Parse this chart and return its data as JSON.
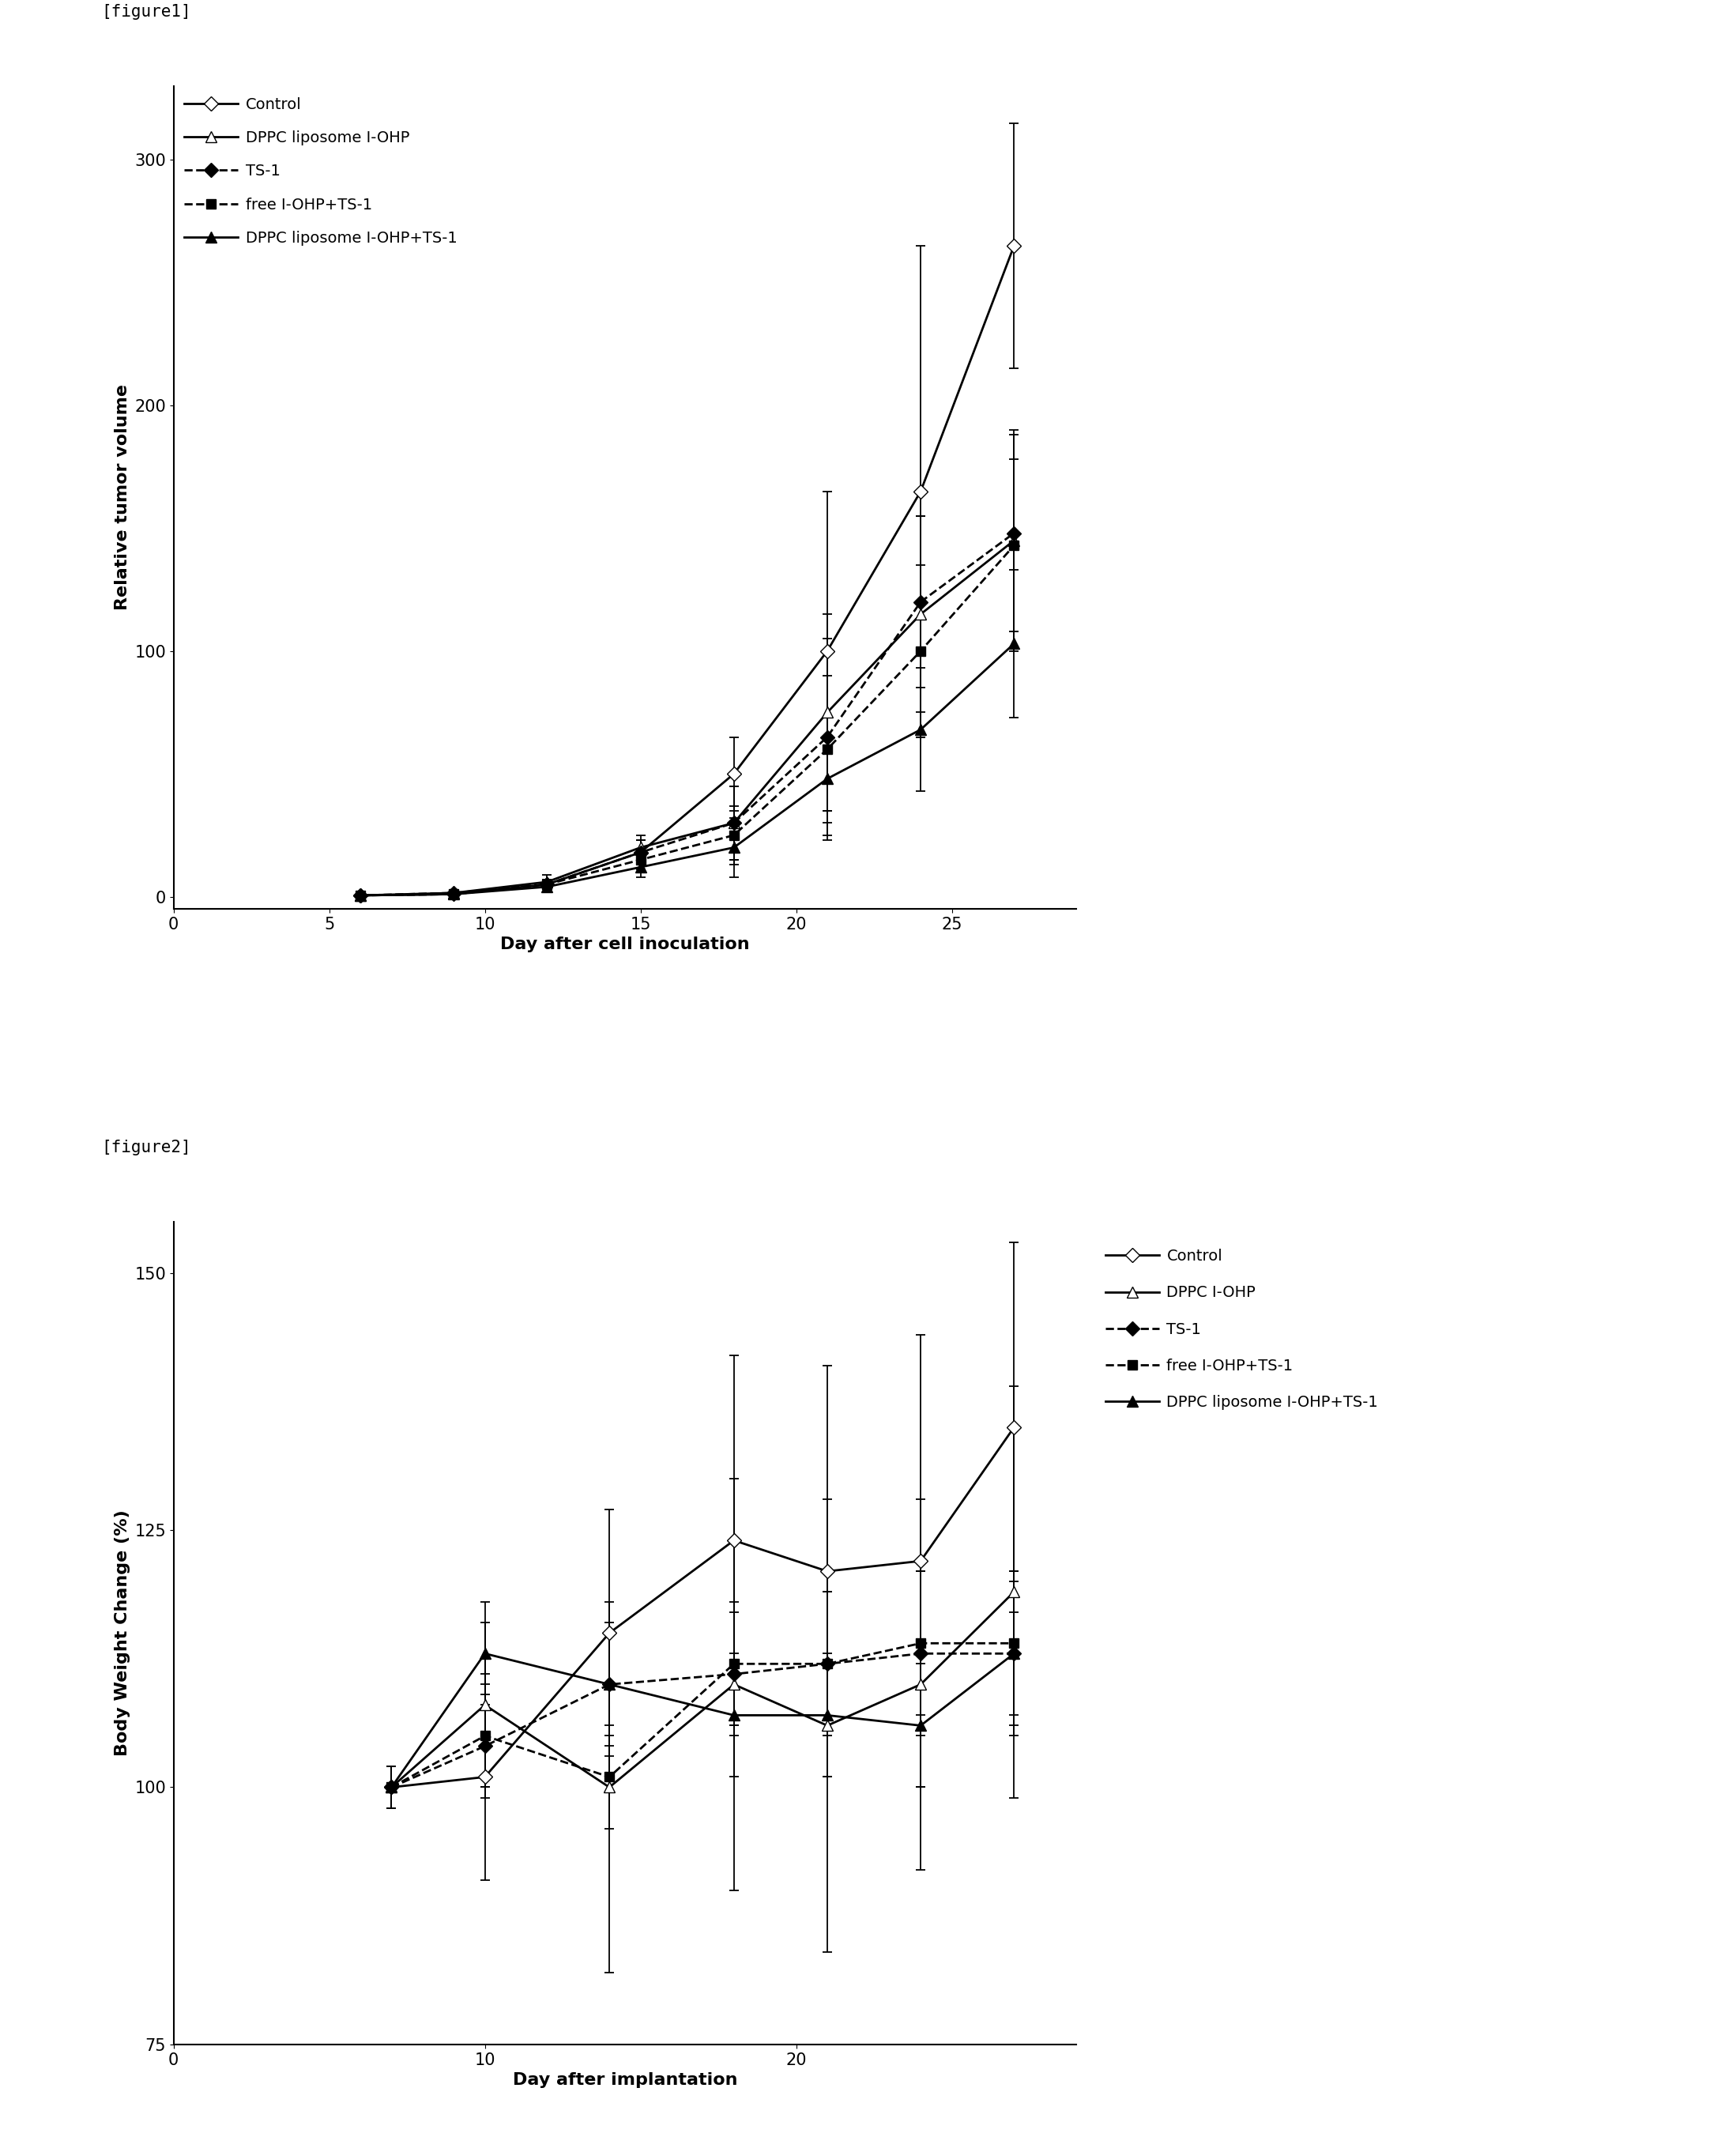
{
  "fig1": {
    "title": "[figure1]",
    "xlabel": "Day after cell inoculation",
    "ylabel": "Relative tumor volume",
    "xlim": [
      0,
      29
    ],
    "ylim": [
      -5,
      330
    ],
    "xticks": [
      0,
      5,
      10,
      15,
      20,
      25
    ],
    "yticks": [
      0,
      100,
      200,
      300
    ],
    "series": {
      "Control": {
        "x": [
          6,
          9,
          12,
          15,
          18,
          21,
          24,
          27
        ],
        "y": [
          0.5,
          1.0,
          5.0,
          18.0,
          50.0,
          100.0,
          165.0,
          265.0
        ],
        "yerr": [
          0.5,
          1.0,
          2.0,
          5.0,
          15.0,
          65.0,
          100.0,
          50.0
        ],
        "marker": "D",
        "markerfacecolor": "white",
        "linestyle": "-",
        "linewidth": 2.0,
        "markersize": 9,
        "color": "#000000"
      },
      "DPPC liposome I-OHP": {
        "x": [
          6,
          9,
          12,
          15,
          18,
          21,
          24,
          27
        ],
        "y": [
          0.5,
          1.5,
          6.0,
          20.0,
          30.0,
          75.0,
          115.0,
          145.0
        ],
        "yerr": [
          0.5,
          1.0,
          3.0,
          5.0,
          15.0,
          40.0,
          40.0,
          45.0
        ],
        "marker": "^",
        "markerfacecolor": "white",
        "linestyle": "-",
        "linewidth": 2.0,
        "markersize": 10,
        "color": "#000000"
      },
      "TS-1": {
        "x": [
          6,
          9,
          12,
          15,
          18,
          21,
          24,
          27
        ],
        "y": [
          0.5,
          1.5,
          5.0,
          18.0,
          30.0,
          65.0,
          120.0,
          148.0
        ],
        "yerr": [
          0.5,
          1.0,
          2.0,
          5.0,
          15.0,
          40.0,
          35.0,
          40.0
        ],
        "marker": "D",
        "markerfacecolor": "black",
        "linestyle": "--",
        "linewidth": 2.0,
        "markersize": 9,
        "color": "#000000"
      },
      "free I-OHP+TS-1": {
        "x": [
          6,
          9,
          12,
          15,
          18,
          21,
          24,
          27
        ],
        "y": [
          0.5,
          1.0,
          5.0,
          15.0,
          25.0,
          60.0,
          100.0,
          143.0
        ],
        "yerr": [
          0.5,
          1.0,
          2.0,
          4.0,
          12.0,
          30.0,
          35.0,
          35.0
        ],
        "marker": "s",
        "markerfacecolor": "black",
        "linestyle": "--",
        "linewidth": 2.0,
        "markersize": 9,
        "color": "#000000"
      },
      "DPPC liposome I-OHP+TS-1": {
        "x": [
          6,
          9,
          12,
          15,
          18,
          21,
          24,
          27
        ],
        "y": [
          0.5,
          1.0,
          4.0,
          12.0,
          20.0,
          48.0,
          68.0,
          103.0
        ],
        "yerr": [
          0.5,
          1.0,
          2.0,
          4.0,
          12.0,
          25.0,
          25.0,
          30.0
        ],
        "marker": "^",
        "markerfacecolor": "black",
        "linestyle": "-",
        "linewidth": 2.0,
        "markersize": 10,
        "color": "#000000"
      }
    }
  },
  "fig2": {
    "title": "[figure2]",
    "xlabel": "Day after implantation",
    "ylabel": "Body Weight Change (%)",
    "xlim": [
      0,
      29
    ],
    "ylim": [
      75,
      155
    ],
    "xticks": [
      0,
      10,
      20
    ],
    "yticks": [
      75,
      100,
      125,
      150
    ],
    "series": {
      "Control": {
        "x": [
          7,
          10,
          14,
          18,
          21,
          24,
          27
        ],
        "y": [
          100.0,
          101.0,
          115.0,
          124.0,
          121.0,
          122.0,
          135.0
        ],
        "yerr": [
          2.0,
          10.0,
          12.0,
          18.0,
          20.0,
          22.0,
          18.0
        ],
        "marker": "D",
        "markerfacecolor": "white",
        "linestyle": "-",
        "linewidth": 2.0,
        "markersize": 9,
        "color": "#000000"
      },
      "DPPC I-OHP": {
        "x": [
          7,
          10,
          14,
          18,
          21,
          24,
          27
        ],
        "y": [
          100.0,
          108.0,
          100.0,
          110.0,
          106.0,
          110.0,
          119.0
        ],
        "yerr": [
          2.0,
          8.0,
          18.0,
          20.0,
          22.0,
          18.0,
          20.0
        ],
        "marker": "^",
        "markerfacecolor": "white",
        "linestyle": "-",
        "linewidth": 2.0,
        "markersize": 10,
        "color": "#000000"
      },
      "TS-1": {
        "x": [
          7,
          10,
          14,
          18,
          21,
          24,
          27
        ],
        "y": [
          100.0,
          104.0,
          110.0,
          111.0,
          112.0,
          113.0,
          113.0
        ],
        "yerr": [
          2.0,
          5.0,
          5.0,
          6.0,
          7.0,
          8.0,
          8.0
        ],
        "marker": "D",
        "markerfacecolor": "black",
        "linestyle": "--",
        "linewidth": 2.0,
        "markersize": 9,
        "color": "#000000"
      },
      "free I-OHP+TS-1": {
        "x": [
          7,
          10,
          14,
          18,
          21,
          24,
          27
        ],
        "y": [
          100.0,
          105.0,
          101.0,
          112.0,
          112.0,
          114.0,
          114.0
        ],
        "yerr": [
          2.0,
          5.0,
          5.0,
          6.0,
          7.0,
          7.0,
          7.0
        ],
        "marker": "s",
        "markerfacecolor": "black",
        "linestyle": "--",
        "linewidth": 2.0,
        "markersize": 9,
        "color": "#000000"
      },
      "DPPC liposome I-OHP+TS-1": {
        "x": [
          7,
          10,
          14,
          18,
          21,
          24,
          27
        ],
        "y": [
          100.0,
          113.0,
          110.0,
          107.0,
          107.0,
          106.0,
          113.0
        ],
        "yerr": [
          2.0,
          5.0,
          6.0,
          6.0,
          6.0,
          6.0,
          7.0
        ],
        "marker": "^",
        "markerfacecolor": "black",
        "linestyle": "-",
        "linewidth": 2.0,
        "markersize": 10,
        "color": "#000000"
      }
    }
  },
  "bg_color": "#ffffff",
  "label_fontsize": 16,
  "tick_fontsize": 15,
  "legend_fontsize": 14,
  "figure_label_fontsize": 15
}
